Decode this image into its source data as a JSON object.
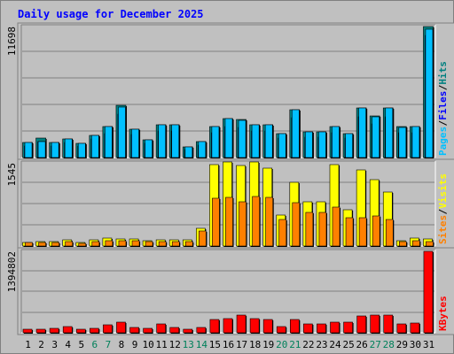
{
  "chart_data": [
    {
      "type": "bar",
      "panel": "top",
      "title": "Daily usage for December 2025",
      "categories": [
        "1",
        "2",
        "3",
        "4",
        "5",
        "6",
        "7",
        "8",
        "9",
        "10",
        "11",
        "12",
        "13",
        "14",
        "15",
        "16",
        "17",
        "18",
        "19",
        "20",
        "21",
        "22",
        "23",
        "24",
        "25",
        "26",
        "27",
        "28",
        "29",
        "30",
        "31"
      ],
      "weekend_days": [
        "6",
        "7",
        "13",
        "14",
        "20",
        "21",
        "27",
        "28"
      ],
      "ymax_label": "11698",
      "ylim": [
        0,
        11698
      ],
      "grid": true,
      "series": [
        {
          "name": "Hits",
          "color": "#008080",
          "values": [
            1350,
            1750,
            1350,
            1650,
            1250,
            2000,
            2750,
            4700,
            2550,
            1550,
            2950,
            2950,
            950,
            1400,
            2800,
            3450,
            3400,
            2950,
            2950,
            2100,
            4300,
            2300,
            2300,
            2750,
            2150,
            4450,
            3700,
            4400,
            2750,
            2750,
            11698
          ]
        },
        {
          "name": "Files",
          "color": "#0000ff",
          "values": [
            1050,
            1450,
            1050,
            1350,
            1000,
            1650,
            2100,
            3850,
            2050,
            1250,
            2350,
            2400,
            750,
            1100,
            2250,
            2750,
            2700,
            2400,
            2350,
            1700,
            3550,
            1850,
            1850,
            2250,
            1750,
            3650,
            3000,
            3650,
            2250,
            2250,
            10900
          ]
        },
        {
          "name": "Pages",
          "color": "#00c0ff",
          "values": [
            1350,
            1450,
            1350,
            1650,
            1250,
            2000,
            2750,
            4500,
            2550,
            1550,
            2950,
            2950,
            950,
            1400,
            2800,
            3450,
            3350,
            2950,
            2950,
            2100,
            4300,
            2300,
            2300,
            2750,
            2150,
            4400,
            3600,
            4400,
            2700,
            2750,
            11500
          ]
        }
      ]
    },
    {
      "type": "bar",
      "panel": "middle",
      "categories": [
        "1",
        "2",
        "3",
        "4",
        "5",
        "6",
        "7",
        "8",
        "9",
        "10",
        "11",
        "12",
        "13",
        "14",
        "15",
        "16",
        "17",
        "18",
        "19",
        "20",
        "21",
        "22",
        "23",
        "24",
        "25",
        "26",
        "27",
        "28",
        "29",
        "30",
        "31"
      ],
      "ymax_label": "1545",
      "ylim": [
        0,
        1545
      ],
      "grid": true,
      "series": [
        {
          "name": "Visits",
          "color": "#ffff00",
          "values": [
            70,
            85,
            80,
            120,
            70,
            110,
            150,
            130,
            130,
            100,
            120,
            120,
            110,
            330,
            1520,
            1560,
            1500,
            1560,
            1450,
            570,
            1180,
            830,
            830,
            1510,
            680,
            1420,
            1240,
            1000,
            100,
            150,
            130
          ]
        },
        {
          "name": "Sites",
          "color": "#ff8000",
          "values": [
            60,
            70,
            60,
            90,
            50,
            90,
            100,
            100,
            100,
            80,
            90,
            90,
            90,
            280,
            880,
            910,
            830,
            920,
            900,
            500,
            800,
            620,
            620,
            730,
            520,
            520,
            560,
            500,
            80,
            100,
            90
          ]
        }
      ]
    },
    {
      "type": "bar",
      "panel": "bottom",
      "categories": [
        "1",
        "2",
        "3",
        "4",
        "5",
        "6",
        "7",
        "8",
        "9",
        "10",
        "11",
        "12",
        "13",
        "14",
        "15",
        "16",
        "17",
        "18",
        "19",
        "20",
        "21",
        "22",
        "23",
        "24",
        "25",
        "26",
        "27",
        "28",
        "29",
        "30",
        "31"
      ],
      "ymax_label": "1394802",
      "ylim": [
        0,
        1394802
      ],
      "grid": true,
      "series": [
        {
          "name": "KBytes",
          "color": "#ff0000",
          "values": [
            60000,
            65000,
            75000,
            105000,
            60000,
            70000,
            130000,
            180000,
            90000,
            80000,
            150000,
            90000,
            60000,
            90000,
            230000,
            250000,
            310000,
            240000,
            230000,
            110000,
            230000,
            150000,
            150000,
            180000,
            180000,
            290000,
            310000,
            310000,
            150000,
            160000,
            1394802
          ]
        }
      ]
    }
  ]
}
